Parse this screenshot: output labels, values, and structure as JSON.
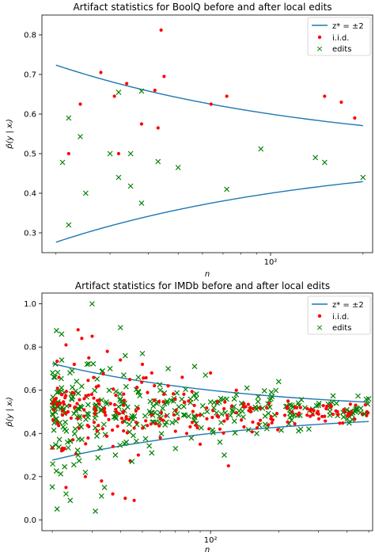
{
  "chart_data": [
    {
      "type": "scatter",
      "title": "Artifact statistics for BoolQ before and after local edits",
      "xlabel": "n",
      "ylabel": "p̂(y | xᵢ)",
      "xscale": "log",
      "xlim": [
        18,
        215
      ],
      "ylim": [
        0.25,
        0.85
      ],
      "yticks": [
        "0.3",
        "0.4",
        "0.5",
        "0.6",
        "0.7",
        "0.8"
      ],
      "ytick_values": [
        0.3,
        0.4,
        0.5,
        0.6,
        0.7,
        0.8
      ],
      "xticks": [
        "10²"
      ],
      "xtick_values": [
        100
      ],
      "legend": {
        "placement": "top-right",
        "entries": [
          "z* = ±2",
          "i.i.d.",
          "edits"
        ]
      },
      "colors": {
        "band": "#1f77b4",
        "iid": "#ff0000",
        "edits": "#008000"
      },
      "band_n_range": [
        20,
        200
      ],
      "iid": [
        [
          22,
          0.5
        ],
        [
          24,
          0.625
        ],
        [
          28,
          0.705
        ],
        [
          31,
          0.645
        ],
        [
          32,
          0.5
        ],
        [
          34,
          0.677
        ],
        [
          38,
          0.575
        ],
        [
          42,
          0.66
        ],
        [
          43,
          0.565
        ],
        [
          44,
          0.812
        ],
        [
          45,
          0.695
        ],
        [
          64,
          0.625
        ],
        [
          72,
          0.645
        ],
        [
          150,
          0.645
        ],
        [
          170,
          0.63
        ],
        [
          188,
          0.59
        ]
      ],
      "edits": [
        [
          21,
          0.478
        ],
        [
          22,
          0.59
        ],
        [
          22,
          0.32
        ],
        [
          24,
          0.543
        ],
        [
          25,
          0.4
        ],
        [
          30,
          0.5
        ],
        [
          32,
          0.655
        ],
        [
          32,
          0.44
        ],
        [
          35,
          0.5
        ],
        [
          35,
          0.418
        ],
        [
          38,
          0.658
        ],
        [
          38,
          0.375
        ],
        [
          43,
          0.48
        ],
        [
          50,
          0.465
        ],
        [
          72,
          0.41
        ],
        [
          93,
          0.512
        ],
        [
          140,
          0.49
        ],
        [
          150,
          0.478
        ],
        [
          200,
          0.44
        ]
      ]
    },
    {
      "type": "scatter",
      "title": "Artifact statistics for IMDb before and after local edits",
      "xlabel": "n",
      "ylabel": "p̂(y | xᵢ)",
      "xscale": "log",
      "xlim": [
        18,
        520
      ],
      "ylim": [
        -0.05,
        1.05
      ],
      "yticks": [
        "0.0",
        "0.2",
        "0.4",
        "0.6",
        "0.8",
        "1.0"
      ],
      "ytick_values": [
        0.0,
        0.2,
        0.4,
        0.6,
        0.8,
        1.0
      ],
      "xticks": [
        "10²"
      ],
      "xtick_values": [
        100
      ],
      "legend": {
        "placement": "top-right",
        "entries": [
          "z* = ±2",
          "i.i.d.",
          "edits"
        ]
      },
      "colors": {
        "band": "#1f77b4",
        "iid": "#ff0000",
        "edits": "#008000"
      },
      "band_n_range": [
        20,
        500
      ],
      "iid": [
        [
          22,
          0.32
        ],
        [
          23,
          0.81
        ],
        [
          23,
          0.15
        ],
        [
          25,
          0.72
        ],
        [
          26,
          0.88
        ],
        [
          27,
          0.84
        ],
        [
          28,
          0.2
        ],
        [
          29,
          0.75
        ],
        [
          30,
          0.85
        ],
        [
          32,
          0.62
        ],
        [
          33,
          0.18
        ],
        [
          35,
          0.78
        ],
        [
          37,
          0.12
        ],
        [
          40,
          0.74
        ],
        [
          42,
          0.1
        ],
        [
          44,
          0.65
        ],
        [
          46,
          0.09
        ],
        [
          48,
          0.3
        ],
        [
          50,
          0.72
        ],
        [
          55,
          0.68
        ],
        [
          60,
          0.38
        ],
        [
          65,
          0.62
        ],
        [
          70,
          0.41
        ],
        [
          75,
          0.66
        ],
        [
          80,
          0.55
        ],
        [
          90,
          0.35
        ],
        [
          100,
          0.68
        ],
        [
          110,
          0.42
        ],
        [
          120,
          0.25
        ],
        [
          130,
          0.6
        ],
        [
          150,
          0.52
        ],
        [
          180,
          0.44
        ],
        [
          220,
          0.55
        ],
        [
          300,
          0.49
        ],
        [
          420,
          0.5
        ]
      ],
      "edits": [
        [
          21,
          0.05
        ],
        [
          22,
          0.86
        ],
        [
          23,
          0.12
        ],
        [
          24,
          0.09
        ],
        [
          26,
          0.3
        ],
        [
          28,
          0.22
        ],
        [
          30,
          1.0
        ],
        [
          31,
          0.04
        ],
        [
          33,
          0.11
        ],
        [
          34,
          0.15
        ],
        [
          36,
          0.7
        ],
        [
          38,
          0.3
        ],
        [
          40,
          0.89
        ],
        [
          42,
          0.76
        ],
        [
          45,
          0.27
        ],
        [
          48,
          0.66
        ],
        [
          50,
          0.77
        ],
        [
          55,
          0.31
        ],
        [
          60,
          0.6
        ],
        [
          65,
          0.7
        ],
        [
          70,
          0.33
        ],
        [
          80,
          0.48
        ],
        [
          85,
          0.71
        ],
        [
          95,
          0.67
        ],
        [
          110,
          0.36
        ],
        [
          115,
          0.3
        ],
        [
          130,
          0.58
        ],
        [
          160,
          0.4
        ],
        [
          200,
          0.64
        ],
        [
          250,
          0.42
        ],
        [
          300,
          0.53
        ],
        [
          400,
          0.51
        ],
        [
          480,
          0.49
        ]
      ],
      "dense_cluster": {
        "iid": {
          "count": 230,
          "center": 0.5,
          "spread": 0.1,
          "n_range": [
            20,
            500
          ]
        },
        "edits": {
          "count": 320,
          "center": 0.5,
          "spread": 0.12,
          "n_range": [
            20,
            500
          ]
        }
      }
    }
  ]
}
